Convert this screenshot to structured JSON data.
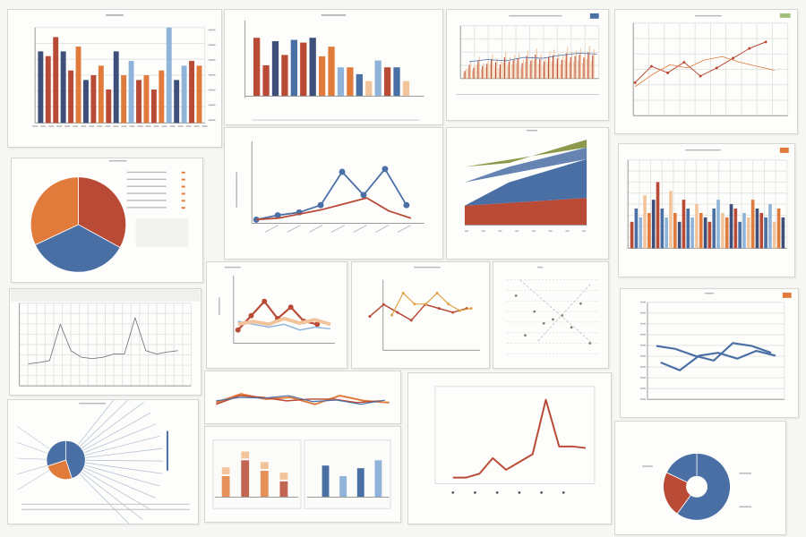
{
  "page": {
    "background": "#f7f7f5"
  },
  "colors": {
    "blue": "#4a6fa5",
    "red": "#b94a35",
    "orange": "#e07b3c",
    "lightblue": "#8fb3d9",
    "peach": "#f2c49b",
    "navy": "#3e4f7a",
    "olive": "#8a9a4a",
    "gray": "#a9a9a9"
  },
  "chart_data": [
    {
      "id": "p1",
      "type": "bar",
      "categories": [
        "1",
        "2",
        "3",
        "4",
        "5",
        "6",
        "7",
        "8",
        "9",
        "10",
        "11",
        "12",
        "13",
        "14",
        "15",
        "16",
        "17",
        "18",
        "19",
        "20",
        "21",
        "22"
      ],
      "series": [
        {
          "values": [
            75,
            70,
            90,
            75,
            55,
            80,
            45,
            50,
            60,
            35,
            75,
            50,
            65,
            45,
            50,
            35,
            55,
            100,
            45,
            60,
            65,
            60
          ]
        }
      ],
      "ylim": [
        0,
        100
      ],
      "bar_colors": [
        "navy",
        "red",
        "red",
        "navy",
        "red",
        "orange",
        "navy",
        "red",
        "orange",
        "red",
        "navy",
        "orange",
        "lightblue",
        "red",
        "orange",
        "red",
        "orange",
        "lightblue",
        "navy",
        "lightblue",
        "red",
        "orange"
      ]
    },
    {
      "id": "p2",
      "type": "bar",
      "categories": [
        "1",
        "2",
        "3",
        "4",
        "5",
        "6",
        "7",
        "8",
        "9",
        "10",
        "11",
        "12",
        "13",
        "14",
        "15",
        "16",
        "17"
      ],
      "series": [
        {
          "values": [
            85,
            45,
            80,
            60,
            82,
            78,
            85,
            58,
            72,
            42,
            42,
            32,
            22,
            52,
            42,
            42,
            22
          ]
        }
      ],
      "ylim": [
        0,
        100
      ],
      "bar_colors": [
        "red",
        "red",
        "navy",
        "red",
        "blue",
        "red",
        "navy",
        "orange",
        "orange",
        "lightblue",
        "orange",
        "blue",
        "peach",
        "lightblue",
        "red",
        "blue",
        "peach"
      ]
    },
    {
      "id": "p3",
      "type": "bar",
      "series": [
        {
          "values": [
            20,
            35,
            28,
            45,
            32,
            38,
            50,
            42,
            36,
            55,
            44,
            48,
            52,
            40,
            58,
            46,
            62,
            50,
            44,
            56,
            60,
            52,
            48,
            65,
            55,
            58,
            62,
            54,
            68,
            60
          ]
        }
      ],
      "ylim": [
        0,
        100
      ]
    },
    {
      "id": "p4",
      "type": "line",
      "series": [
        {
          "values": [
            30,
            50,
            42,
            55,
            38,
            48,
            60,
            72,
            80
          ]
        },
        {
          "values": [
            25,
            40,
            52,
            48,
            58,
            62,
            55,
            50,
            45
          ]
        }
      ],
      "ylim": [
        0,
        100
      ]
    },
    {
      "id": "p5",
      "type": "pie",
      "values": [
        33,
        35,
        32
      ],
      "slice_colors": [
        "red",
        "blue",
        "orange"
      ]
    },
    {
      "id": "p6",
      "type": "line",
      "series": [
        {
          "values": [
            0.5,
            0.8,
            1.0,
            1.5,
            3.8,
            2.2,
            4.0,
            1.5
          ]
        },
        {
          "values": [
            0.5,
            0.6,
            0.9,
            1.2,
            1.6,
            2.0,
            1.1,
            0.6
          ]
        }
      ],
      "ylim": [
        0,
        5
      ]
    },
    {
      "id": "p7",
      "type": "area",
      "series": [
        {
          "values": [
            10,
            12,
            14
          ]
        },
        {
          "values": [
            22,
            28,
            34
          ]
        },
        {
          "values": [
            30,
            36,
            40
          ]
        },
        {
          "values": [
            32,
            38,
            44
          ]
        }
      ],
      "ylim": [
        0,
        50
      ]
    },
    {
      "id": "p8",
      "type": "bar",
      "series": [
        {
          "values": [
            30,
            45,
            35,
            60,
            40,
            55,
            75,
            45,
            35,
            65,
            40,
            30,
            55,
            45,
            35,
            50,
            40,
            35,
            30,
            45,
            55,
            40,
            35,
            50,
            45,
            30,
            40,
            35,
            55,
            45,
            40,
            35,
            50,
            30,
            45,
            35
          ]
        }
      ],
      "ylim": [
        0,
        100
      ]
    },
    {
      "id": "p9",
      "type": "line",
      "series": [
        {
          "values": [
            20,
            22,
            25,
            80,
            40,
            30,
            28,
            30,
            35,
            35,
            90,
            40,
            35,
            38,
            40
          ]
        }
      ],
      "ylim": [
        0,
        100
      ]
    },
    {
      "id": "p10",
      "type": "line",
      "series": [
        {
          "values": [
            20,
            45,
            70,
            40,
            60,
            35,
            30
          ]
        },
        {
          "values": [
            35,
            30,
            25,
            30,
            20,
            25,
            22
          ]
        },
        {
          "values": [
            30,
            35,
            30,
            40,
            32,
            38,
            30
          ]
        }
      ],
      "ylim": [
        0,
        100
      ]
    },
    {
      "id": "p11",
      "type": "line",
      "series": [
        {
          "values": [
            30,
            60,
            40,
            20,
            60,
            50,
            40,
            50
          ]
        },
        {
          "values": [
            30,
            80,
            55,
            55,
            80,
            55,
            40,
            45
          ]
        }
      ],
      "ylim": [
        0,
        100
      ]
    },
    {
      "id": "p12",
      "type": "scatter",
      "series": [
        {
          "values": [
            [
              10,
              80
            ],
            [
              30,
              60
            ],
            [
              50,
              50
            ],
            [
              70,
              40
            ],
            [
              90,
              20
            ],
            [
              20,
              30
            ],
            [
              40,
              45
            ],
            [
              60,
              55
            ],
            [
              80,
              70
            ]
          ]
        }
      ],
      "ylim": [
        0,
        100
      ]
    },
    {
      "id": "p13",
      "type": "line",
      "series": [
        {
          "values": [
            55,
            52,
            45,
            40,
            58,
            55,
            48
          ]
        },
        {
          "values": [
            38,
            30,
            45,
            48,
            42,
            50,
            45
          ]
        }
      ],
      "ylim": [
        0,
        100
      ]
    },
    {
      "id": "p14",
      "type": "pie",
      "values": [
        45,
        25,
        30
      ],
      "slice_colors": [
        "blue",
        "orange",
        "blue"
      ]
    },
    {
      "id": "p15",
      "type": "line",
      "series": [
        {
          "values": [
            35,
            60,
            45,
            50,
            30,
            55,
            40,
            35
          ]
        },
        {
          "values": [
            30,
            55,
            50,
            40,
            45,
            45,
            35,
            40
          ]
        },
        {
          "values": [
            40,
            50,
            48,
            55,
            38,
            42,
            30,
            42
          ]
        }
      ],
      "ylim": [
        0,
        100
      ]
    },
    {
      "id": "p16",
      "type": "bar",
      "categories": [
        "1",
        "2",
        "3",
        "4",
        "5",
        "6",
        "7",
        "8"
      ],
      "series": [
        {
          "values": [
            40,
            70,
            50,
            30,
            0,
            0,
            0,
            0
          ]
        },
        {
          "values": [
            0,
            0,
            0,
            0,
            60,
            40,
            55,
            70
          ]
        }
      ],
      "ylim": [
        0,
        100
      ]
    },
    {
      "id": "p17",
      "type": "line",
      "series": [
        {
          "values": [
            0,
            0,
            5,
            25,
            10,
            20,
            30,
            100,
            40,
            40,
            38
          ]
        }
      ],
      "ylim": [
        0,
        100
      ]
    },
    {
      "id": "p18",
      "type": "pie",
      "values": [
        60,
        22,
        18
      ],
      "slice_colors": [
        "blue",
        "red",
        "blue"
      ],
      "donut": true
    }
  ]
}
